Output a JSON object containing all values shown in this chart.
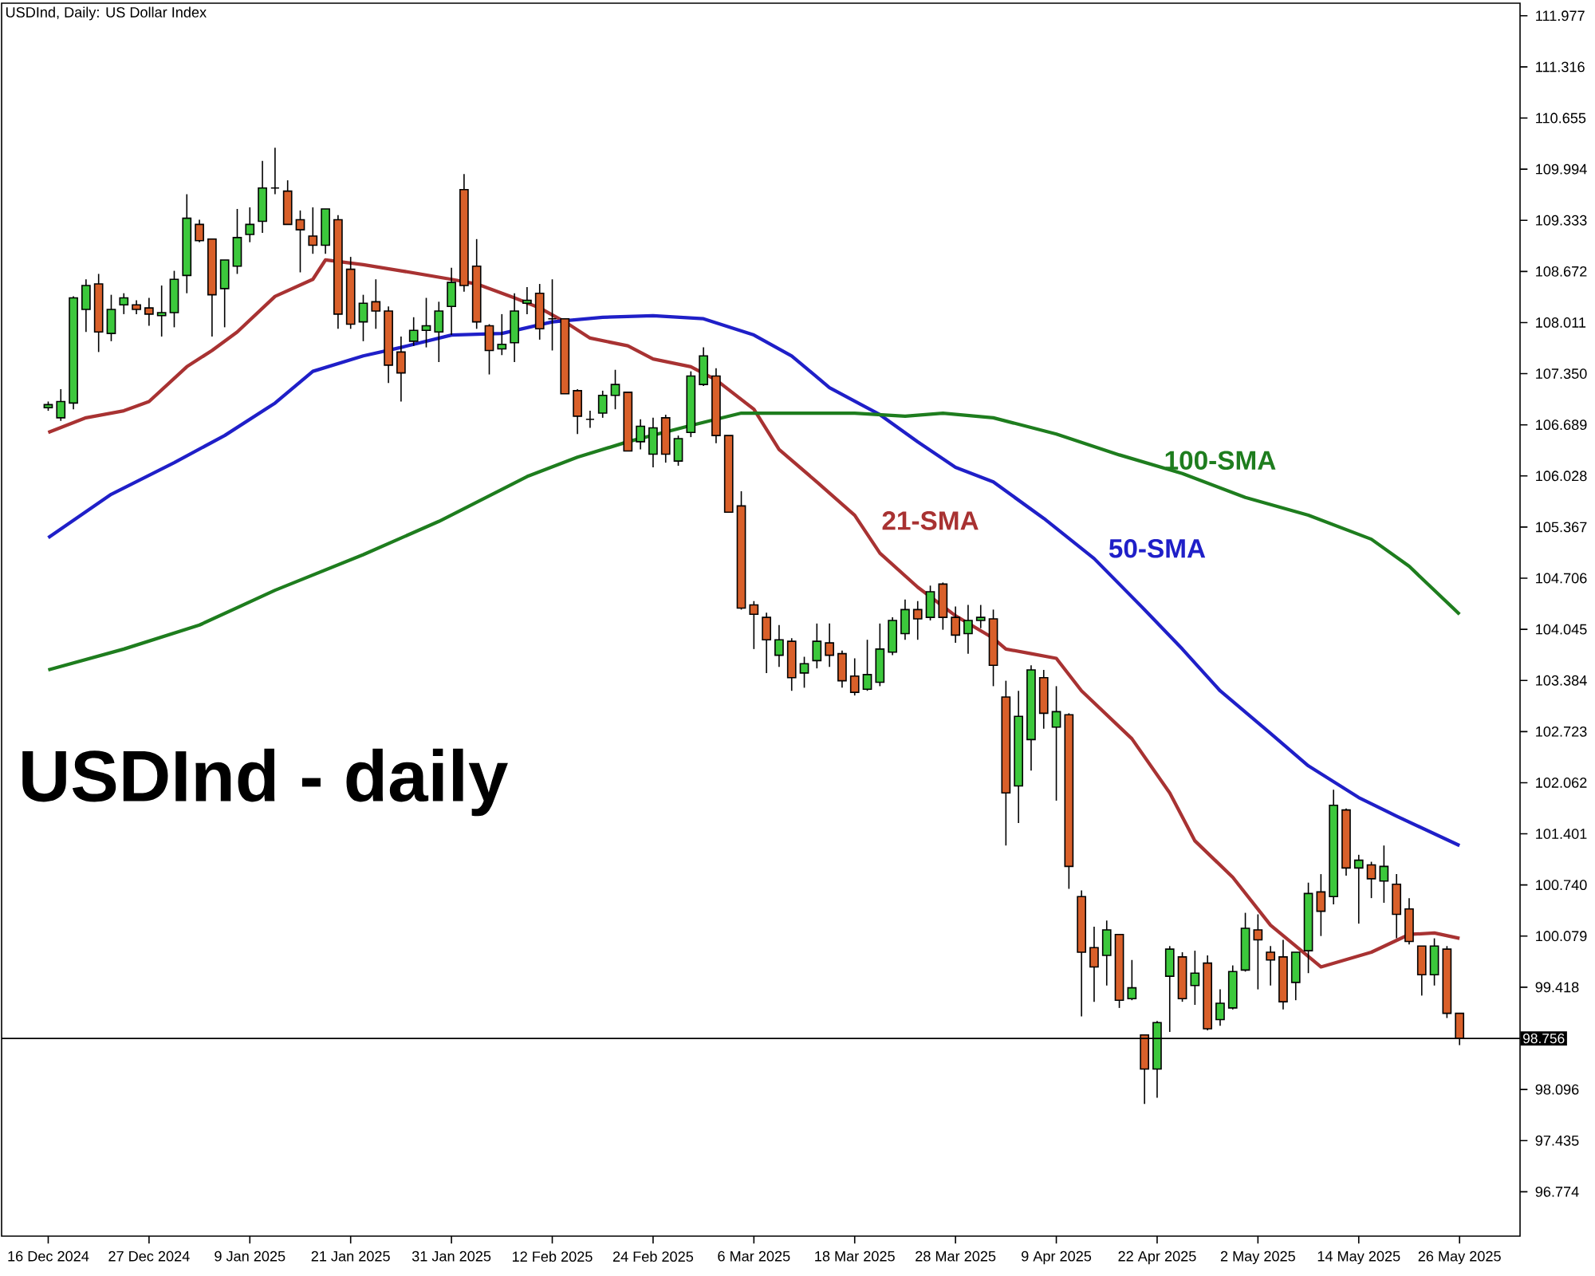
{
  "chart_data": {
    "type": "candlestick",
    "title": "USDInd, Daily:  US Dollar Index",
    "annotations": [
      "USDInd - daily"
    ],
    "categories": [
      "16 Dec 2024",
      null,
      null,
      null,
      null,
      null,
      null,
      null,
      "27 Dec 2024",
      null,
      null,
      null,
      null,
      null,
      null,
      null,
      "9 Jan 2025",
      null,
      null,
      null,
      null,
      null,
      null,
      null,
      "21 Jan 2025",
      null,
      null,
      null,
      null,
      null,
      null,
      null,
      "31 Jan 2025",
      null,
      null,
      null,
      null,
      null,
      null,
      null,
      "12 Feb 2025",
      null,
      null,
      null,
      null,
      null,
      null,
      null,
      "24 Feb 2025",
      null,
      null,
      null,
      null,
      null,
      null,
      null,
      "6 Mar 2025",
      null,
      null,
      null,
      null,
      null,
      null,
      null,
      "18 Mar 2025",
      null,
      null,
      null,
      null,
      null,
      null,
      null,
      "28 Mar 2025",
      null,
      null,
      null,
      null,
      null,
      null,
      null,
      "9 Apr 2025",
      null,
      null,
      null,
      null,
      null,
      null,
      null,
      "22 Apr 2025",
      null,
      null,
      null,
      null,
      null,
      null,
      null,
      "2 May 2025",
      null,
      null,
      null,
      null,
      null,
      null,
      null,
      "14 May 2025",
      null,
      null,
      null,
      null,
      null,
      null,
      null,
      "26 May 2025"
    ],
    "ohlc": [
      [
        106.91,
        106.99,
        106.87,
        106.95
      ],
      [
        106.78,
        107.15,
        106.74,
        106.99
      ],
      [
        106.97,
        108.35,
        106.89,
        108.33
      ],
      [
        108.18,
        108.57,
        107.89,
        108.49
      ],
      [
        108.51,
        108.64,
        107.63,
        107.89
      ],
      [
        107.87,
        108.37,
        107.77,
        108.18
      ],
      [
        108.24,
        108.39,
        108.12,
        108.33
      ],
      [
        108.24,
        108.3,
        108.12,
        108.18
      ],
      [
        108.2,
        108.33,
        107.97,
        108.12
      ],
      [
        108.1,
        108.49,
        107.83,
        108.14
      ],
      [
        108.14,
        108.68,
        107.95,
        108.57
      ],
      [
        108.62,
        109.67,
        108.39,
        109.36
      ],
      [
        109.28,
        109.34,
        109.05,
        109.07
      ],
      [
        109.09,
        109.09,
        107.83,
        108.37
      ],
      [
        108.45,
        108.82,
        107.95,
        108.82
      ],
      [
        108.74,
        109.48,
        108.64,
        109.11
      ],
      [
        109.15,
        109.5,
        109.05,
        109.28
      ],
      [
        109.32,
        110.1,
        109.17,
        109.75
      ],
      [
        109.75,
        110.27,
        109.67,
        109.75
      ],
      [
        109.71,
        109.85,
        109.28,
        109.28
      ],
      [
        109.34,
        109.46,
        108.66,
        109.21
      ],
      [
        109.13,
        109.5,
        108.9,
        109.01
      ],
      [
        109.01,
        109.48,
        108.9,
        109.48
      ],
      [
        109.34,
        109.4,
        107.93,
        108.12
      ],
      [
        108.7,
        108.86,
        107.93,
        107.99
      ],
      [
        108.02,
        108.37,
        107.77,
        108.26
      ],
      [
        108.28,
        108.57,
        107.93,
        108.16
      ],
      [
        108.16,
        108.22,
        107.23,
        107.46
      ],
      [
        107.63,
        107.83,
        106.99,
        107.36
      ],
      [
        107.77,
        108.08,
        107.71,
        107.91
      ],
      [
        107.91,
        108.33,
        107.69,
        107.97
      ],
      [
        107.89,
        108.28,
        107.5,
        108.16
      ],
      [
        108.22,
        108.72,
        107.85,
        108.53
      ],
      [
        109.73,
        109.93,
        108.41,
        108.49
      ],
      [
        108.74,
        109.09,
        107.93,
        108.02
      ],
      [
        107.97,
        107.99,
        107.34,
        107.65
      ],
      [
        107.67,
        108.12,
        107.59,
        107.73
      ],
      [
        107.75,
        108.39,
        107.5,
        108.16
      ],
      [
        108.26,
        108.47,
        108.12,
        108.3
      ],
      [
        108.39,
        108.51,
        107.79,
        107.93
      ],
      [
        108.06,
        108.57,
        107.65,
        108.06
      ],
      [
        108.06,
        108.06,
        107.09,
        107.09
      ],
      [
        107.13,
        107.15,
        106.57,
        106.8
      ],
      [
        106.76,
        106.87,
        106.65,
        106.76
      ],
      [
        106.84,
        107.13,
        106.78,
        107.07
      ],
      [
        107.07,
        107.4,
        106.89,
        107.21
      ],
      [
        107.11,
        107.11,
        106.35,
        106.35
      ],
      [
        106.47,
        106.76,
        106.37,
        106.67
      ],
      [
        106.31,
        106.78,
        106.14,
        106.65
      ],
      [
        106.78,
        106.82,
        106.2,
        106.31
      ],
      [
        106.22,
        106.55,
        106.16,
        106.51
      ],
      [
        106.59,
        107.38,
        106.53,
        107.32
      ],
      [
        107.21,
        107.69,
        107.19,
        107.58
      ],
      [
        107.32,
        107.42,
        106.45,
        106.55
      ],
      [
        106.55,
        106.55,
        105.56,
        105.56
      ],
      [
        105.64,
        105.83,
        104.3,
        104.32
      ],
      [
        104.36,
        104.41,
        103.79,
        104.24
      ],
      [
        104.2,
        104.26,
        103.48,
        103.91
      ],
      [
        103.71,
        104.1,
        103.56,
        103.91
      ],
      [
        103.89,
        103.93,
        103.25,
        103.42
      ],
      [
        103.48,
        103.69,
        103.29,
        103.6
      ],
      [
        103.64,
        104.12,
        103.54,
        103.89
      ],
      [
        103.87,
        104.12,
        103.56,
        103.71
      ],
      [
        103.73,
        103.77,
        103.29,
        103.38
      ],
      [
        103.44,
        103.67,
        103.19,
        103.23
      ],
      [
        103.27,
        103.91,
        103.25,
        103.46
      ],
      [
        103.36,
        104.12,
        103.31,
        103.79
      ],
      [
        103.75,
        104.2,
        103.71,
        104.16
      ],
      [
        103.99,
        104.43,
        103.91,
        104.3
      ],
      [
        104.3,
        104.41,
        103.91,
        104.18
      ],
      [
        104.2,
        104.61,
        104.16,
        104.53
      ],
      [
        104.63,
        104.65,
        104.04,
        104.2
      ],
      [
        104.2,
        104.34,
        103.87,
        103.97
      ],
      [
        103.99,
        104.36,
        103.73,
        104.16
      ],
      [
        104.16,
        104.36,
        104.06,
        104.2
      ],
      [
        104.18,
        104.3,
        103.31,
        103.58
      ],
      [
        103.17,
        103.38,
        101.25,
        101.93
      ],
      [
        102.02,
        103.25,
        101.54,
        102.92
      ],
      [
        102.62,
        103.58,
        102.22,
        103.52
      ],
      [
        103.42,
        103.52,
        102.76,
        102.96
      ],
      [
        102.78,
        103.31,
        101.83,
        102.98
      ],
      [
        102.94,
        102.96,
        100.69,
        100.98
      ],
      [
        100.59,
        100.67,
        99.04,
        99.87
      ],
      [
        99.93,
        100.2,
        99.23,
        99.68
      ],
      [
        99.83,
        100.28,
        99.44,
        100.16
      ],
      [
        100.1,
        100.1,
        99.15,
        99.25
      ],
      [
        99.27,
        99.77,
        99.25,
        99.41
      ],
      [
        98.8,
        98.8,
        97.91,
        98.36
      ],
      [
        98.36,
        98.98,
        97.99,
        98.96
      ],
      [
        99.56,
        99.95,
        98.84,
        99.91
      ],
      [
        99.81,
        99.87,
        99.23,
        99.27
      ],
      [
        99.44,
        99.89,
        99.19,
        99.6
      ],
      [
        99.73,
        99.83,
        98.86,
        98.88
      ],
      [
        99.0,
        99.39,
        98.92,
        99.21
      ],
      [
        99.15,
        99.7,
        99.13,
        99.62
      ],
      [
        99.64,
        100.38,
        99.62,
        100.18
      ],
      [
        100.16,
        100.36,
        99.39,
        100.03
      ],
      [
        99.87,
        99.95,
        99.44,
        99.77
      ],
      [
        99.81,
        100.03,
        99.13,
        99.23
      ],
      [
        99.48,
        99.87,
        99.25,
        99.87
      ],
      [
        99.89,
        100.77,
        99.6,
        100.63
      ],
      [
        100.65,
        100.88,
        100.08,
        100.4
      ],
      [
        100.59,
        101.97,
        100.49,
        101.77
      ],
      [
        101.71,
        101.73,
        100.86,
        100.96
      ],
      [
        100.96,
        101.13,
        100.24,
        101.06
      ],
      [
        101.0,
        101.04,
        100.57,
        100.82
      ],
      [
        100.79,
        101.25,
        100.51,
        100.98
      ],
      [
        100.75,
        100.88,
        100.05,
        100.36
      ],
      [
        100.43,
        100.57,
        99.97,
        100.01
      ],
      [
        99.95,
        99.95,
        99.31,
        99.58
      ],
      [
        99.58,
        100.05,
        99.44,
        99.95
      ],
      [
        99.91,
        99.95,
        99.02,
        99.08
      ],
      [
        99.08,
        99.08,
        98.67,
        98.756
      ]
    ],
    "colors": [
      "#3cc83c",
      "#3cc83c",
      "#3cc83c",
      "#3cc83c",
      "#d9602a",
      "#3cc83c",
      "#3cc83c",
      "#d9602a",
      "#d9602a",
      "#3cc83c",
      "#3cc83c",
      "#3cc83c",
      "#d9602a",
      "#d9602a",
      "#3cc83c",
      "#3cc83c",
      "#3cc83c",
      "#3cc83c",
      "#000000",
      "#d9602a",
      "#d9602a",
      "#d9602a",
      "#3cc83c",
      "#d9602a",
      "#d9602a",
      "#3cc83c",
      "#d9602a",
      "#d9602a",
      "#d9602a",
      "#3cc83c",
      "#3cc83c",
      "#3cc83c",
      "#3cc83c",
      "#d9602a",
      "#d9602a",
      "#d9602a",
      "#3cc83c",
      "#3cc83c",
      "#3cc83c",
      "#d9602a",
      "#000000",
      "#d9602a",
      "#d9602a",
      "#000000",
      "#3cc83c",
      "#3cc83c",
      "#d9602a",
      "#3cc83c",
      "#3cc83c",
      "#d9602a",
      "#3cc83c",
      "#3cc83c",
      "#3cc83c",
      "#d9602a",
      "#d9602a",
      "#d9602a",
      "#d9602a",
      "#d9602a",
      "#3cc83c",
      "#d9602a",
      "#3cc83c",
      "#3cc83c",
      "#d9602a",
      "#d9602a",
      "#d9602a",
      "#3cc83c",
      "#3cc83c",
      "#3cc83c",
      "#3cc83c",
      "#d9602a",
      "#3cc83c",
      "#d9602a",
      "#d9602a",
      "#3cc83c",
      "#3cc83c",
      "#d9602a",
      "#d9602a",
      "#3cc83c",
      "#3cc83c",
      "#d9602a",
      "#3cc83c",
      "#d9602a",
      "#d9602a",
      "#d9602a",
      "#3cc83c",
      "#d9602a",
      "#3cc83c",
      "#d9602a",
      "#3cc83c",
      "#3cc83c",
      "#d9602a",
      "#3cc83c",
      "#d9602a",
      "#3cc83c",
      "#3cc83c",
      "#3cc83c",
      "#d9602a",
      "#d9602a",
      "#d9602a",
      "#3cc83c",
      "#3cc83c",
      "#d9602a",
      "#3cc83c",
      "#d9602a",
      "#3cc83c",
      "#d9602a",
      "#3cc83c",
      "#d9602a",
      "#d9602a",
      "#d9602a",
      "#3cc83c",
      "#d9602a",
      "#d9602a"
    ],
    "series": [
      {
        "name": "21-SMA",
        "type": "line",
        "color": "#a83232",
        "values": [
          106.59,
          null,
          null,
          106.78,
          null,
          null,
          106.87,
          null,
          106.99,
          null,
          null,
          107.44,
          null,
          107.65,
          null,
          107.89,
          null,
          null,
          108.35,
          null,
          null,
          108.57,
          108.82,
          null,
          null,
          108.76,
          null,
          null,
          108.68,
          null,
          null,
          null,
          108.57,
          null,
          108.51,
          null,
          null,
          108.33,
          null,
          108.2,
          null,
          108.02,
          null,
          107.81,
          null,
          null,
          107.71,
          null,
          107.54,
          null,
          null,
          107.44,
          null,
          107.27,
          null,
          null,
          106.89,
          null,
          106.37,
          null,
          null,
          105.95,
          null,
          null,
          105.52,
          null,
          105.03,
          null,
          null,
          104.59,
          null,
          null,
          104.22,
          null,
          null,
          103.93,
          103.79,
          null,
          103.73,
          null,
          103.67,
          null,
          103.25,
          null,
          null,
          null,
          102.63,
          null,
          null,
          101.93,
          null,
          101.31,
          null,
          null,
          100.84,
          null,
          null,
          100.22,
          null,
          null,
          null,
          99.68,
          null,
          null,
          null,
          99.87,
          null,
          null,
          100.1,
          null,
          100.12,
          null,
          100.05
        ]
      },
      {
        "name": "50-SMA",
        "type": "line",
        "color": "#1f1fc8",
        "values": [
          105.23,
          null,
          null,
          null,
          null,
          105.79,
          null,
          null,
          null,
          null,
          106.2,
          null,
          null,
          null,
          106.55,
          null,
          null,
          null,
          106.97,
          null,
          null,
          107.38,
          null,
          null,
          null,
          107.58,
          null,
          null,
          107.69,
          null,
          null,
          null,
          107.85,
          null,
          null,
          null,
          107.87,
          null,
          null,
          null,
          108.02,
          null,
          null,
          null,
          108.08,
          null,
          null,
          null,
          108.1,
          null,
          null,
          null,
          108.06,
          null,
          null,
          null,
          107.85,
          null,
          null,
          107.58,
          null,
          null,
          107.17,
          null,
          null,
          null,
          106.82,
          null,
          null,
          106.47,
          null,
          null,
          106.14,
          null,
          null,
          105.95,
          null,
          null,
          null,
          105.48,
          null,
          null,
          null,
          104.96,
          null,
          null,
          null,
          104.3,
          null,
          null,
          103.79,
          null,
          null,
          103.25,
          null,
          null,
          null,
          102.7,
          null,
          null,
          102.28,
          null,
          null,
          null,
          101.87,
          null,
          null,
          101.63,
          null,
          null,
          null,
          null,
          101.25
        ]
      },
      {
        "name": "100-SMA",
        "type": "line",
        "color": "#1e7d1e",
        "values": [
          103.52,
          null,
          null,
          null,
          null,
          null,
          103.79,
          null,
          null,
          null,
          null,
          null,
          104.1,
          null,
          null,
          null,
          null,
          null,
          104.55,
          null,
          null,
          null,
          null,
          null,
          null,
          105.01,
          null,
          null,
          null,
          null,
          null,
          105.44,
          null,
          null,
          null,
          null,
          null,
          null,
          106.02,
          null,
          null,
          null,
          106.27,
          null,
          null,
          null,
          106.47,
          null,
          null,
          null,
          null,
          106.68,
          null,
          null,
          null,
          106.84,
          null,
          null,
          null,
          null,
          106.84,
          null,
          null,
          null,
          106.84,
          null,
          null,
          null,
          106.8,
          null,
          null,
          106.84,
          null,
          null,
          null,
          106.78,
          null,
          null,
          null,
          null,
          106.57,
          null,
          null,
          null,
          null,
          106.3,
          null,
          null,
          null,
          null,
          106.06,
          null,
          null,
          null,
          null,
          105.75,
          null,
          null,
          null,
          null,
          105.52,
          null,
          null,
          null,
          null,
          105.21,
          null,
          null,
          104.86,
          null,
          null,
          null,
          104.24
        ]
      }
    ],
    "ylim": [
      96.2,
      112.14
    ],
    "yticks": [
      111.977,
      111.316,
      110.655,
      109.994,
      109.333,
      108.672,
      108.011,
      {
        "value": 107.35,
        "label": "107.350"
      },
      106.689,
      106.028,
      105.367,
      104.706,
      104.045,
      103.384,
      102.723,
      102.062,
      101.401,
      {
        "value": 100.74,
        "label": "100.740"
      },
      100.079,
      99.418,
      98.096,
      97.435,
      96.774
    ],
    "ref_lines": [
      {
        "axis": "y",
        "value": 98.756,
        "label": "98.756",
        "color": "#000000"
      }
    ]
  }
}
